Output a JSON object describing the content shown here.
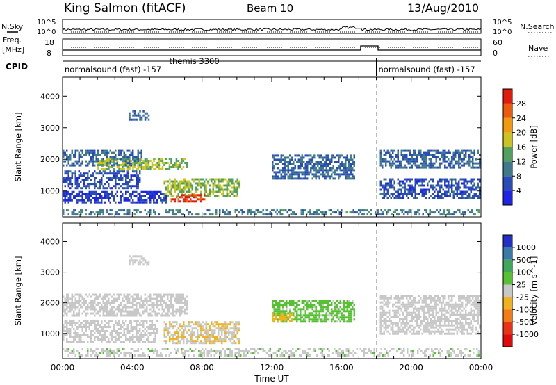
{
  "header": {
    "station": "King Salmon (fitACF)",
    "beam": "Beam 10",
    "date": "13/Aug/2010"
  },
  "colors": {
    "trace": "#000000",
    "background": "#ffffff",
    "dashed_marker": "#bbbbbb"
  },
  "aux_panels": {
    "nsky_label": "N.Sky",
    "nsky_ticks": [
      "10^5",
      "10^0"
    ],
    "nsearch_label": "N.Search",
    "nsearch_ticks": [
      "10^5",
      "10^0"
    ],
    "freq_label_1": "Freq.",
    "freq_label_2": "[MHz]",
    "freq_ticks": [
      "18",
      "8"
    ],
    "nave_label": "Nave",
    "nave_ticks": [
      "60",
      "0"
    ],
    "cpid_label": "CPID",
    "cpid_segments": [
      {
        "label": "normalsound (fast)  -157",
        "start_hour": 0,
        "end_hour": 6
      },
      {
        "label": "themis 3300",
        "start_hour": 6,
        "end_hour": 18
      },
      {
        "label": "normalsound (fast)  -157",
        "start_hour": 18,
        "end_hour": 24
      }
    ]
  },
  "chart_data": [
    {
      "type": "heatmap",
      "title": "",
      "quantity": "Power",
      "xlabel": "Time UT",
      "ylabel": "Slant Range [km]",
      "xlim_hours": [
        0,
        24
      ],
      "ylim": [
        180,
        4600
      ],
      "x_ticks": [
        "00:00",
        "04:00",
        "08:00",
        "12:00",
        "16:00",
        "20:00",
        "00:00"
      ],
      "y_ticks": [
        1000,
        2000,
        3000,
        4000
      ],
      "colorbar": {
        "label": "Power [dB]",
        "range": [
          0,
          32
        ],
        "tick_labels": [
          "4",
          "8",
          "12",
          "16",
          "20",
          "24",
          "28"
        ],
        "colors": [
          "#1f23e6",
          "#2a4cb8",
          "#3e7a8c",
          "#4fa15d",
          "#cbc41f",
          "#f29a0c",
          "#ec5a0a",
          "#e31a0a"
        ]
      },
      "echo_regions": [
        {
          "t0": 0.0,
          "t1": 4.6,
          "r0": 1750,
          "r1": 2300,
          "value": 8
        },
        {
          "t0": 2.0,
          "t1": 7.2,
          "r0": 1650,
          "r1": 2050,
          "value": 16
        },
        {
          "t0": 0.0,
          "t1": 4.5,
          "r0": 1050,
          "r1": 1650,
          "value": 6
        },
        {
          "t0": 0.0,
          "t1": 6.0,
          "r0": 600,
          "r1": 1000,
          "value": 4
        },
        {
          "t0": 5.8,
          "t1": 10.2,
          "r0": 800,
          "r1": 1400,
          "value": 16
        },
        {
          "t0": 6.2,
          "t1": 8.2,
          "r0": 580,
          "r1": 900,
          "value": 28
        },
        {
          "t0": 3.8,
          "t1": 5.0,
          "r0": 3200,
          "r1": 3550,
          "value": 8
        },
        {
          "t0": 12.0,
          "t1": 16.8,
          "r0": 1350,
          "r1": 2150,
          "value": 8
        },
        {
          "t0": 18.2,
          "t1": 24.0,
          "r0": 1700,
          "r1": 2300,
          "value": 8
        },
        {
          "t0": 18.2,
          "t1": 24.0,
          "r0": 700,
          "r1": 1400,
          "value": 6
        },
        {
          "t0": 0.0,
          "t1": 24.0,
          "r0": 200,
          "r1": 420,
          "value": 10
        }
      ]
    },
    {
      "type": "heatmap",
      "title": "",
      "quantity": "Velocity",
      "xlabel": "Time UT",
      "ylabel": "Slant Range [km]",
      "xlim_hours": [
        0,
        24
      ],
      "ylim": [
        180,
        4600
      ],
      "x_ticks": [
        "00:00",
        "04:00",
        "08:00",
        "12:00",
        "16:00",
        "20:00",
        "00:00"
      ],
      "y_ticks": [
        1000,
        2000,
        3000,
        4000
      ],
      "colorbar": {
        "label": "Velocity [m s^-1]",
        "range": [
          -1200,
          1200
        ],
        "tick_labels": [
          "1000",
          "500",
          "100",
          "25",
          "-25",
          "-100",
          "-500",
          "-1000"
        ],
        "colors": [
          "#2030c8",
          "#3a7aa8",
          "#3ea85a",
          "#56c233",
          "#c8c8c8",
          "#f2b21c",
          "#f47c14",
          "#ec3214",
          "#e00a0a"
        ]
      },
      "echo_regions": [
        {
          "t0": 0.0,
          "t1": 7.2,
          "r0": 1550,
          "r1": 2300,
          "value": 0
        },
        {
          "t0": 0.0,
          "t1": 5.5,
          "r0": 700,
          "r1": 1450,
          "value": 0
        },
        {
          "t0": 5.8,
          "t1": 10.2,
          "r0": 600,
          "r1": 1400,
          "value": -120
        },
        {
          "t0": 3.8,
          "t1": 5.0,
          "r0": 3200,
          "r1": 3550,
          "value": -30
        },
        {
          "t0": 12.0,
          "t1": 16.8,
          "r0": 1300,
          "r1": 2100,
          "value": 200
        },
        {
          "t0": 12.0,
          "t1": 13.2,
          "r0": 1350,
          "r1": 1650,
          "value": -200
        },
        {
          "t0": 18.2,
          "t1": 24.0,
          "r0": 900,
          "r1": 2250,
          "value": 0
        },
        {
          "t0": 0.0,
          "t1": 24.0,
          "r0": 200,
          "r1": 520,
          "value": 80
        }
      ]
    }
  ]
}
